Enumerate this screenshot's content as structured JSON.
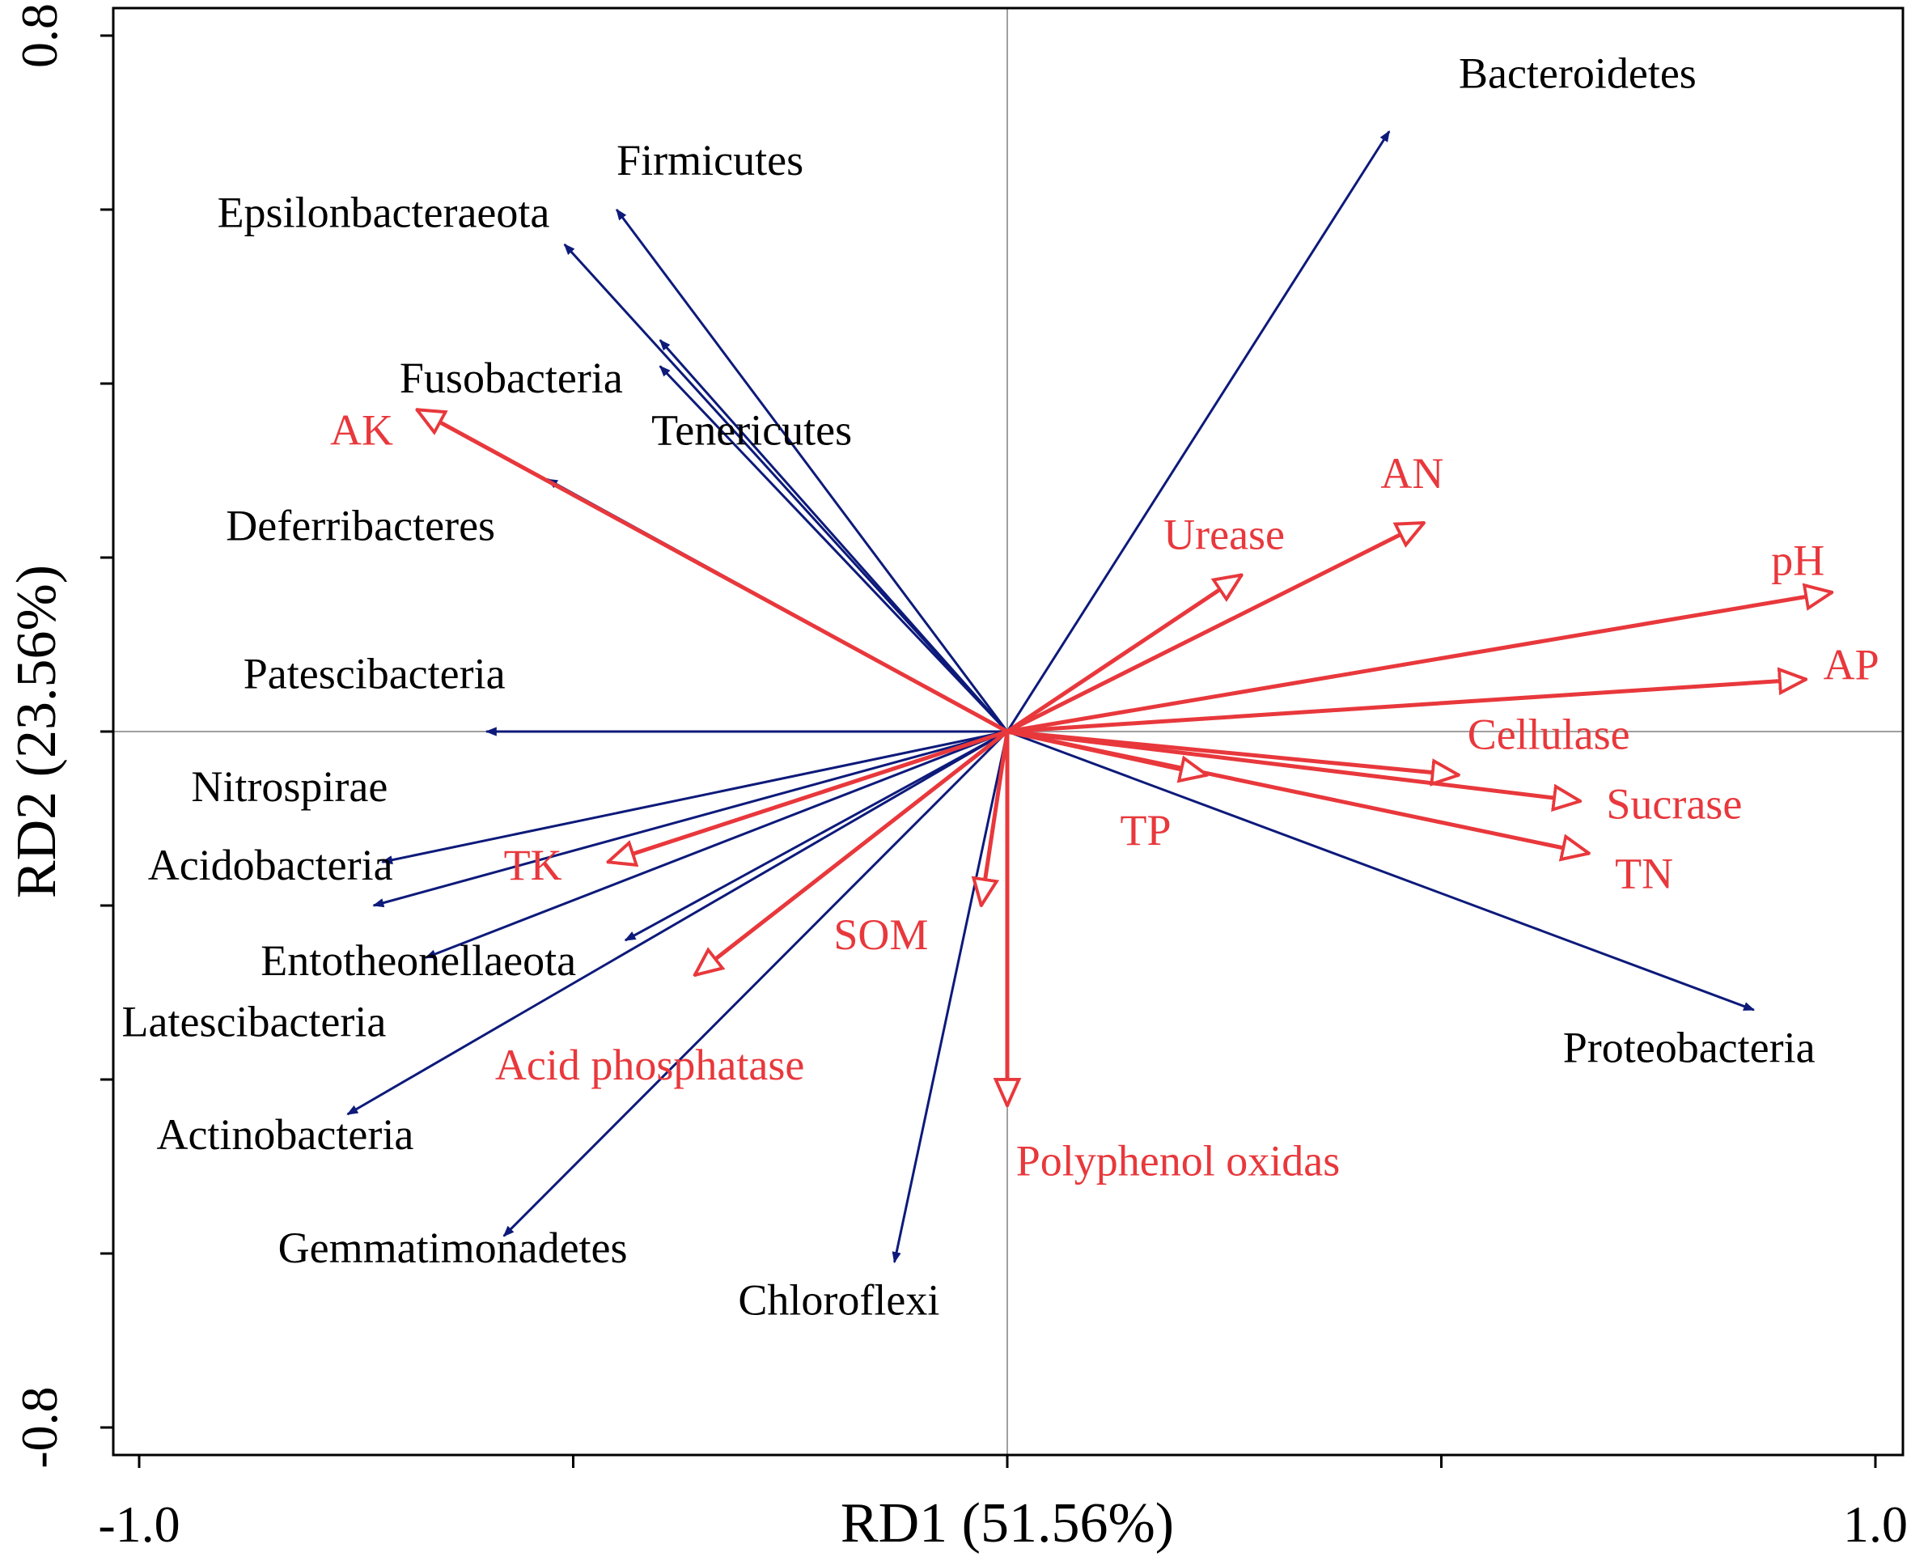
{
  "chart_data": {
    "type": "rda-biplot",
    "xlabel": "RD1 (51.56%)",
    "ylabel": "RD2 (23.56%)",
    "xlim": [
      -1.0,
      1.0
    ],
    "ylim": [
      -0.8,
      0.8
    ],
    "x_tick_labels": [
      {
        "value": -1.0,
        "label": "-1.0"
      },
      {
        "value": 1.0,
        "label": "1.0"
      }
    ],
    "y_tick_labels": [
      {
        "value": 0.8,
        "label": "0.8"
      },
      {
        "value": -0.8,
        "label": "-0.8"
      }
    ],
    "x_ticks": [
      -1.0,
      -0.5,
      0.0,
      0.5,
      1.0
    ],
    "y_ticks": [
      -0.8,
      -0.6,
      -0.4,
      -0.2,
      0.0,
      0.2,
      0.4,
      0.6,
      0.8
    ],
    "colors": {
      "species": "#0d1a7a",
      "environment": "#e8383c",
      "axis": "#000000",
      "zero_line": "#a0a0a0"
    },
    "species": [
      {
        "name": "Bacteroidetes",
        "x": 0.44,
        "y": 0.69,
        "lx": 0.52,
        "ly": 0.74
      },
      {
        "name": "Firmicutes",
        "x": -0.45,
        "y": 0.6,
        "lx": -0.45,
        "ly": 0.64
      },
      {
        "name": "Epsilonbacteraeota",
        "x": -0.51,
        "y": 0.56,
        "lx": -0.91,
        "ly": 0.58
      },
      {
        "name": "Fusobacteria",
        "x": -0.4,
        "y": 0.45,
        "lx": -0.7,
        "ly": 0.39
      },
      {
        "name": "Tenericutes",
        "x": -0.4,
        "y": 0.42,
        "lx": -0.41,
        "ly": 0.33
      },
      {
        "name": "Deferribacteres",
        "x": -0.53,
        "y": 0.29,
        "lx": -0.9,
        "ly": 0.22
      },
      {
        "name": "Patescibacteria",
        "x": -0.6,
        "y": 0.0,
        "lx": -0.88,
        "ly": 0.05
      },
      {
        "name": "Nitrospirae",
        "x": -0.72,
        "y": -0.15,
        "lx": -0.94,
        "ly": -0.08
      },
      {
        "name": "Acidobacteria",
        "x": -0.73,
        "y": -0.2,
        "lx": -0.99,
        "ly": -0.17
      },
      {
        "name": "Entotheonellaeota",
        "x": -0.67,
        "y": -0.26,
        "lx": -0.86,
        "ly": -0.28
      },
      {
        "name": "Latescibacteria",
        "x": -0.44,
        "y": -0.24,
        "lx": -1.02,
        "ly": -0.35
      },
      {
        "name": "Actinobacteria",
        "x": -0.76,
        "y": -0.44,
        "lx": -0.98,
        "ly": -0.48
      },
      {
        "name": "Gemmatimonadetes",
        "x": -0.58,
        "y": -0.58,
        "lx": -0.84,
        "ly": -0.61
      },
      {
        "name": "Chloroflexi",
        "x": -0.13,
        "y": -0.61,
        "lx": -0.31,
        "ly": -0.67
      },
      {
        "name": "Proteobacteria",
        "x": 0.86,
        "y": -0.32,
        "lx": 0.64,
        "ly": -0.38
      }
    ],
    "environment": [
      {
        "name": "AK",
        "x": -0.68,
        "y": 0.37,
        "lx": -0.78,
        "ly": 0.33
      },
      {
        "name": "AN",
        "x": 0.48,
        "y": 0.24,
        "lx": 0.43,
        "ly": 0.28
      },
      {
        "name": "Urease",
        "x": 0.27,
        "y": 0.18,
        "lx": 0.18,
        "ly": 0.21
      },
      {
        "name": "pH",
        "x": 0.95,
        "y": 0.16,
        "lx": 0.88,
        "ly": 0.18
      },
      {
        "name": "AP",
        "x": 0.92,
        "y": 0.06,
        "lx": 0.94,
        "ly": 0.06
      },
      {
        "name": "Cellulase",
        "x": 0.52,
        "y": -0.05,
        "lx": 0.53,
        "ly": -0.02
      },
      {
        "name": "Sucrase",
        "x": 0.66,
        "y": -0.08,
        "lx": 0.69,
        "ly": -0.1
      },
      {
        "name": "TN",
        "x": 0.67,
        "y": -0.14,
        "lx": 0.7,
        "ly": -0.18
      },
      {
        "name": "TP",
        "x": 0.23,
        "y": -0.05,
        "lx": 0.13,
        "ly": -0.13
      },
      {
        "name": "TK",
        "x": -0.46,
        "y": -0.15,
        "lx": -0.58,
        "ly": -0.17
      },
      {
        "name": "SOM",
        "x": -0.03,
        "y": -0.2,
        "lx": -0.2,
        "ly": -0.25
      },
      {
        "name": "Acid phosphatase",
        "x": -0.36,
        "y": -0.28,
        "lx": -0.59,
        "ly": -0.4
      },
      {
        "name": "Polyphenol oxidas",
        "x": 0.0,
        "y": -0.43,
        "lx": 0.01,
        "ly": -0.51
      }
    ]
  }
}
